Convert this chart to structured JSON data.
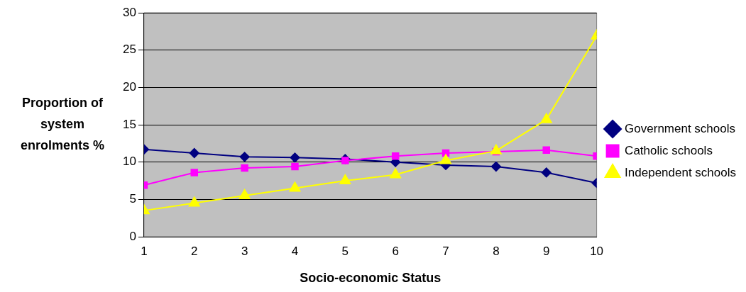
{
  "chart_data": {
    "type": "line",
    "xlabel": "Socio-economic Status",
    "ylabel": "Proportion of system enrolments %",
    "x": [
      1,
      2,
      3,
      4,
      5,
      6,
      7,
      8,
      9,
      10
    ],
    "xlim": [
      1,
      10
    ],
    "xticks": [
      1,
      2,
      3,
      4,
      5,
      6,
      7,
      8,
      9,
      10
    ],
    "ylim": [
      0,
      30
    ],
    "yticks": [
      0,
      5,
      10,
      15,
      20,
      25,
      30
    ],
    "grid": "y",
    "legend": "right",
    "series": [
      {
        "name": "Government schools",
        "color": "#000080",
        "marker": "diamond",
        "values": [
          11.7,
          11.2,
          10.7,
          10.6,
          10.4,
          10.0,
          9.6,
          9.4,
          8.6,
          7.2
        ]
      },
      {
        "name": "Catholic schools",
        "color": "#ff00ff",
        "marker": "square",
        "values": [
          6.9,
          8.6,
          9.2,
          9.4,
          10.2,
          10.8,
          11.2,
          11.4,
          11.6,
          10.8
        ]
      },
      {
        "name": "Independent schools",
        "color": "#ffff00",
        "marker": "triangle",
        "values": [
          3.5,
          4.5,
          5.5,
          6.5,
          7.5,
          8.3,
          10.2,
          11.5,
          15.7,
          26.9
        ]
      }
    ]
  }
}
